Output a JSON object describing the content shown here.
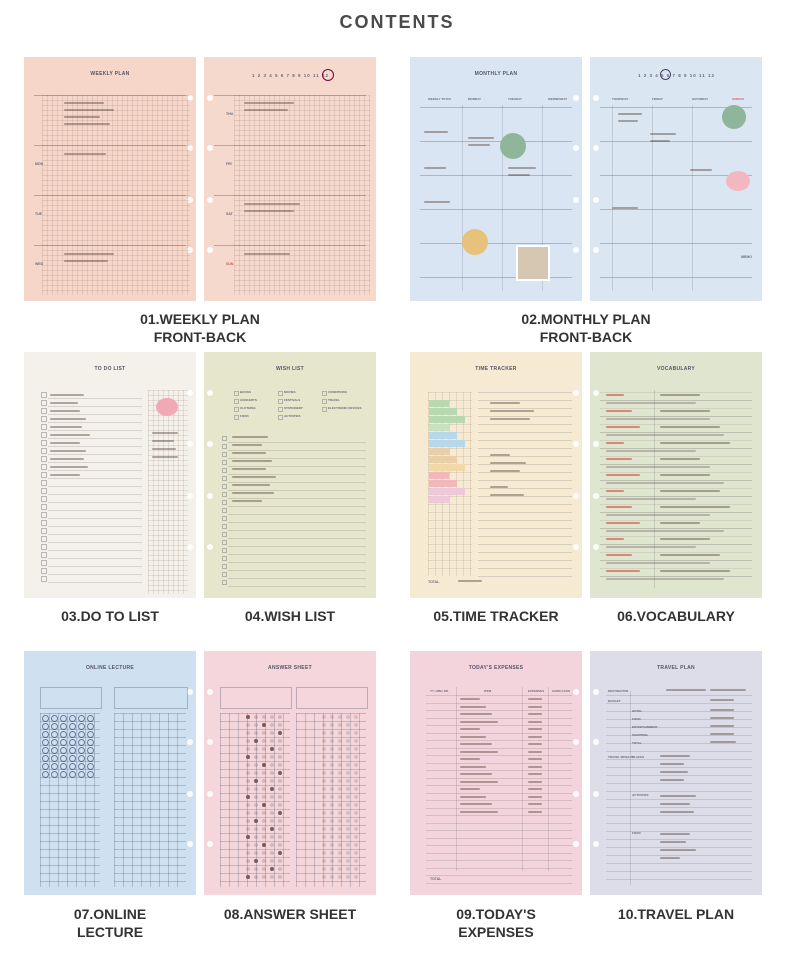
{
  "page_title": "CONTENTS",
  "items": [
    {
      "caption_line1": "01.WEEKLY PLAN",
      "caption_line2": "FRONT-BACK",
      "sheet_title": "WEEKLY PLAN",
      "color": "#f5d6c8"
    },
    {
      "caption_line1": "02.MONTHLY PLAN",
      "caption_line2": "FRONT-BACK",
      "sheet_title": "MONTHLY PLAN",
      "color": "#d9e5f3"
    },
    {
      "caption_line1": "03.DO TO LIST",
      "caption_line2": "",
      "sheet_title": "TO DO LIST",
      "color": "#f4f0ea"
    },
    {
      "caption_line1": "04.WISH LIST",
      "caption_line2": "",
      "sheet_title": "WISH LIST",
      "color": "#e6e6cc"
    },
    {
      "caption_line1": "05.TIME TRACKER",
      "caption_line2": "",
      "sheet_title": "TIME TRACKER",
      "color": "#f6ead2"
    },
    {
      "caption_line1": "06.VOCABULARY",
      "caption_line2": "",
      "sheet_title": "VOCABULARY",
      "color": "#dfe5cf"
    },
    {
      "caption_line1": "07.ONLINE",
      "caption_line2": "LECTURE",
      "sheet_title": "ONLINE LECTURE",
      "color": "#cfe0f1"
    },
    {
      "caption_line1": "08.ANSWER SHEET",
      "caption_line2": "",
      "sheet_title": "ANSWER SHEET",
      "color": "#f4d6dc"
    },
    {
      "caption_line1": "09.TODAY'S",
      "caption_line2": "EXPENSES",
      "sheet_title": "TODAY'S EXPENSES",
      "color": "#f3d3dc"
    },
    {
      "caption_line1": "10.TRAVEL PLAN",
      "caption_line2": "",
      "sheet_title": "TRAVEL PLAN",
      "color": "#dcdde9"
    }
  ],
  "tags": {
    "weekly_days": [
      "MON",
      "TUE",
      "WED",
      "THU",
      "FRI",
      "SAT",
      "SUN"
    ],
    "monthly_days": [
      "WEEKLY TO DO",
      "MONDAY",
      "TUESDAY",
      "WEDNESDAY",
      "THURSDAY",
      "FRIDAY",
      "SATURDAY",
      "SUNDAY"
    ],
    "month_numbers": "1 2 3 4 5 6 7 8 9 10 11 12",
    "wish_categories": [
      "BOOKS",
      "MOVIES",
      "CONDITIONS",
      "CONCERTS",
      "FESTIVALS",
      "TRAVEL",
      "CLOTHING",
      "STATIONERY",
      "ELECTRONIC DEVICES",
      "FOOD",
      "ACTIVITIES"
    ],
    "expense_headers": [
      "YY / MM / DD",
      "ITEM",
      "EXPENSES",
      "CARD CASH"
    ],
    "travel_labels": [
      "DESTINATION",
      "BUDGET",
      "HOTEL",
      "FOOD",
      "ENTERTAINMENT",
      "SHOPPING",
      "TOTAL",
      "TRAVEL WISHLIST",
      "PLACES",
      "ACTIVITIES",
      "FOOD"
    ],
    "memo": "MEMO",
    "total": "TOTAL"
  }
}
